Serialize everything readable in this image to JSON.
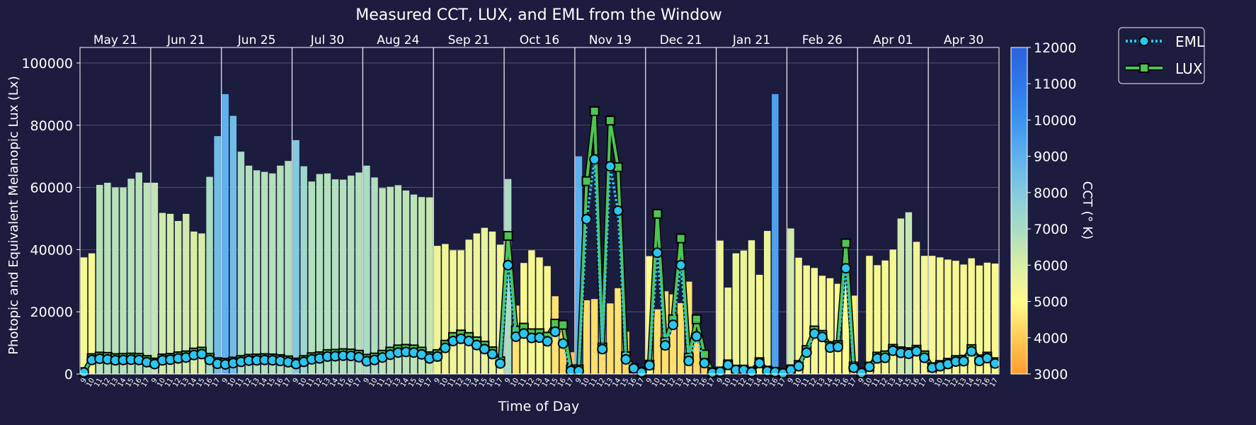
{
  "chart_data": {
    "type": "bar",
    "title": "Measured CCT, LUX, and EML from the Window",
    "xlabel": "Time of Day",
    "ylabel": "Photopic and Equivalent Melanopic Lux (Lx)",
    "ylim": [
      0,
      105000
    ],
    "yticks": [
      0,
      20000,
      40000,
      60000,
      80000,
      100000
    ],
    "grid": true,
    "legend_placement": "outside top-right",
    "colorbar": {
      "label": "CCT (° K)",
      "range": [
        3000,
        12000
      ],
      "ticks": [
        3000,
        4000,
        5000,
        6000,
        7000,
        8000,
        9000,
        10000,
        11000,
        12000
      ]
    },
    "days": [
      {
        "label": "May 21",
        "hours": [
          "9",
          "10",
          "11",
          "12",
          "13",
          "14",
          "15",
          "16",
          "17"
        ],
        "bars": [
          37500,
          38800,
          60800,
          61500,
          60000,
          60000,
          62800,
          64800,
          61500
        ],
        "cct": [
          5200,
          5200,
          6700,
          6700,
          6700,
          6700,
          6700,
          6700,
          6600
        ],
        "lux": [
          600,
          5100,
          5600,
          5500,
          5100,
          5200,
          5300,
          5200,
          4500
        ],
        "eml": [
          500,
          4500,
          4900,
          4700,
          4400,
          4500,
          4600,
          4500,
          3800
        ]
      },
      {
        "label": "Jun 21",
        "hours": [
          "9",
          "10",
          "11",
          "12",
          "13",
          "14",
          "15",
          "16",
          "17"
        ],
        "bars": [
          61500,
          51800,
          51500,
          49200,
          51500,
          45800,
          45200,
          63400,
          76500
        ],
        "cct": [
          6500,
          6200,
          6200,
          6200,
          6200,
          6000,
          6000,
          7000,
          8500
        ],
        "lux": [
          3700,
          5000,
          5200,
          5700,
          6000,
          6900,
          7200,
          5200,
          3800
        ],
        "eml": [
          3200,
          4400,
          4600,
          5000,
          5300,
          6100,
          6400,
          4500,
          3300
        ]
      },
      {
        "label": "Jun 25",
        "hours": [
          "9",
          "10",
          "11",
          "12",
          "13",
          "14",
          "15",
          "16",
          "17"
        ],
        "bars": [
          90000,
          83000,
          71500,
          67000,
          65500,
          65000,
          64500,
          67000,
          68500
        ],
        "cct": [
          9000,
          8500,
          7000,
          6800,
          6800,
          6800,
          6800,
          6800,
          6800
        ],
        "lux": [
          3600,
          4000,
          4500,
          4900,
          5000,
          5100,
          5000,
          4800,
          4400
        ],
        "eml": [
          3100,
          3500,
          3900,
          4300,
          4400,
          4500,
          4400,
          4200,
          3800
        ]
      },
      {
        "label": "Jul 30",
        "hours": [
          "9",
          "10",
          "11",
          "12",
          "13",
          "14",
          "15",
          "16",
          "17"
        ],
        "bars": [
          75200,
          66800,
          61900,
          64300,
          64500,
          62600,
          62500,
          63800,
          64800
        ],
        "cct": [
          8000,
          7300,
          6800,
          6800,
          6800,
          6800,
          6800,
          6800,
          6800
        ],
        "lux": [
          3700,
          4500,
          5400,
          5700,
          6400,
          6500,
          6700,
          6600,
          6200
        ],
        "eml": [
          3200,
          3900,
          4700,
          5000,
          5600,
          5700,
          5900,
          5800,
          5400
        ]
      },
      {
        "label": "Aug 24",
        "hours": [
          "9",
          "10",
          "11",
          "12",
          "13",
          "14",
          "15",
          "16",
          "17"
        ],
        "bars": [
          67000,
          63200,
          59800,
          60200,
          60700,
          59000,
          57700,
          56900,
          56800
        ],
        "cct": [
          7000,
          6900,
          6600,
          6600,
          6600,
          6600,
          6600,
          6500,
          6400
        ],
        "lux": [
          4900,
          5300,
          6200,
          7200,
          7900,
          8100,
          7900,
          7200,
          5700
        ],
        "eml": [
          4100,
          4500,
          5300,
          6200,
          6900,
          7100,
          6900,
          6300,
          5000
        ]
      },
      {
        "label": "Sep 21",
        "hours": [
          "9",
          "10",
          "11",
          "12",
          "13",
          "14",
          "15",
          "16",
          "17"
        ],
        "bars": [
          41200,
          41800,
          39800,
          39800,
          43200,
          45200,
          47000,
          45800,
          41600
        ],
        "cct": [
          5400,
          5400,
          5400,
          5400,
          5500,
          5500,
          5600,
          5500,
          5400
        ],
        "lux": [
          6400,
          9400,
          11900,
          12700,
          11900,
          10500,
          9100,
          7300,
          4100
        ],
        "eml": [
          5600,
          8400,
          10600,
          11300,
          10600,
          9300,
          8000,
          6400,
          3400
        ]
      },
      {
        "label": "Oct 16",
        "hours": [
          "9",
          "10",
          "11",
          "12",
          "13",
          "14",
          "15",
          "16",
          "17"
        ],
        "bars": [
          62700,
          22000,
          35700,
          39800,
          37500,
          34700,
          25000,
          15500,
          7000
        ],
        "cct": [
          7000,
          4500,
          5200,
          5200,
          5200,
          5200,
          4500,
          4200,
          3800
        ],
        "lux": [
          44400,
          14000,
          14900,
          13100,
          13100,
          12000,
          16200,
          15800,
          1500
        ],
        "eml": [
          35000,
          12000,
          13000,
          11600,
          11700,
          10500,
          13600,
          9800,
          1000
        ]
      },
      {
        "label": "Nov 19",
        "hours": [
          "9",
          "10",
          "11",
          "12",
          "13",
          "14",
          "15",
          "16",
          "17"
        ],
        "bars": [
          70000,
          23700,
          24100,
          24500,
          22700,
          27600,
          13600,
          2400,
          900
        ],
        "cct": [
          9000,
          4400,
          4400,
          4400,
          4400,
          4500,
          4200,
          4000,
          3800
        ],
        "lux": [
          1500,
          62000,
          84500,
          8500,
          81500,
          66500,
          5700,
          1900,
          600
        ],
        "eml": [
          1000,
          49800,
          69000,
          8000,
          66800,
          52500,
          4700,
          1800,
          500
        ]
      },
      {
        "label": "Dec 21",
        "hours": [
          "9",
          "10",
          "11",
          "12",
          "13",
          "14",
          "15",
          "16",
          "17"
        ],
        "bars": [
          37900,
          20800,
          26600,
          25600,
          22800,
          29700,
          12600,
          4100,
          1200
        ],
        "cct": [
          5000,
          4400,
          4400,
          4400,
          4400,
          4500,
          4300,
          4100,
          3900
        ],
        "lux": [
          3000,
          51500,
          10200,
          17600,
          43600,
          5200,
          17600,
          6300,
          600
        ],
        "eml": [
          2800,
          39000,
          9200,
          15800,
          35000,
          4200,
          12100,
          3500,
          400
        ]
      },
      {
        "label": "Jan 21",
        "hours": [
          "9",
          "10",
          "11",
          "12",
          "13",
          "14",
          "15",
          "16",
          "17"
        ],
        "bars": [
          42900,
          27800,
          38800,
          39700,
          43000,
          31900,
          46000,
          90000,
          1500
        ],
        "cct": [
          5400,
          5500,
          5500,
          5500,
          5500,
          5200,
          5500,
          9500,
          4000
        ],
        "lux": [
          800,
          3100,
          1400,
          1400,
          800,
          3800,
          1100,
          700,
          300
        ],
        "eml": [
          700,
          2900,
          1300,
          1300,
          600,
          3500,
          900,
          600,
          200
        ]
      },
      {
        "label": "Feb 26",
        "hours": [
          "9",
          "10",
          "11",
          "12",
          "13",
          "14",
          "15",
          "16",
          "17"
        ],
        "bars": [
          46800,
          37400,
          34900,
          34100,
          31600,
          30800,
          29000,
          30700,
          25200
        ],
        "cct": [
          6200,
          5300,
          5200,
          5200,
          5200,
          5100,
          5000,
          5100,
          4800
        ],
        "lux": [
          1500,
          2900,
          7700,
          14000,
          12600,
          9000,
          9300,
          42000,
          2400
        ],
        "eml": [
          1300,
          2500,
          6900,
          13000,
          11900,
          8500,
          8700,
          34000,
          2000
        ]
      },
      {
        "label": "Apr 01",
        "hours": [
          "9",
          "10",
          "11",
          "12",
          "13",
          "14",
          "15",
          "16",
          "17"
        ],
        "bars": [
          1200,
          38000,
          35000,
          36500,
          40000,
          50000,
          52000,
          42500,
          38000
        ],
        "cct": [
          4500,
          5300,
          5200,
          5200,
          5300,
          6200,
          6400,
          5400,
          5300
        ],
        "lux": [
          400,
          2400,
          5600,
          6000,
          8100,
          7300,
          7000,
          7800,
          6000
        ],
        "eml": [
          300,
          2300,
          5000,
          5200,
          7500,
          6800,
          6500,
          7300,
          5200
        ]
      },
      {
        "label": "Apr 30",
        "hours": [
          "9",
          "10",
          "11",
          "12",
          "13",
          "14",
          "15",
          "16",
          "17"
        ],
        "bars": [
          38000,
          37500,
          36800,
          36400,
          35200,
          37200,
          34900,
          35800,
          35500
        ],
        "cct": [
          5200,
          5200,
          5200,
          5200,
          5200,
          5200,
          5200,
          5200,
          5200
        ],
        "lux": [
          2200,
          2900,
          3600,
          4500,
          4600,
          8000,
          4700,
          5600,
          3800
        ],
        "eml": [
          2000,
          2500,
          3200,
          4000,
          4100,
          7300,
          4200,
          5100,
          3400
        ]
      }
    ],
    "series": [
      {
        "name": "EML",
        "color": "#29c6f0",
        "style": "dotted",
        "marker": "circle"
      },
      {
        "name": "LUX",
        "color": "#4ec452",
        "style": "solid",
        "marker": "square"
      }
    ]
  }
}
